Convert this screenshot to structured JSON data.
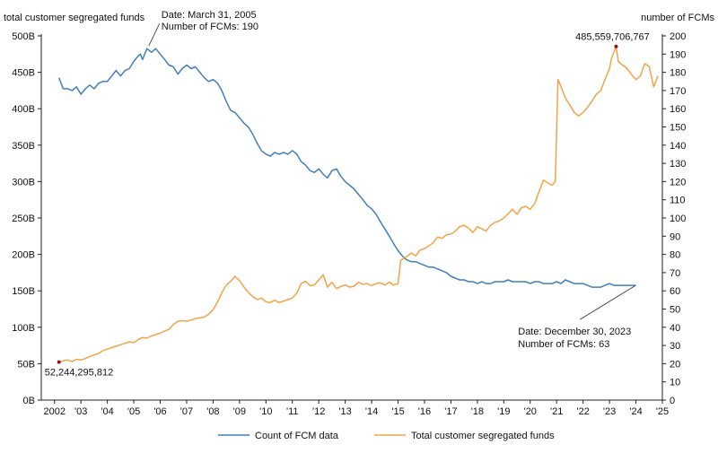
{
  "chart_data": {
    "type": "line",
    "left_axis_title": "total customer segregated funds",
    "right_axis_title": "number of FCMs",
    "x_ticks": [
      "2002",
      "'03",
      "'04",
      "'05",
      "'06",
      "'07",
      "'08",
      "'09",
      "'10",
      "'11",
      "'12",
      "'13",
      "'14",
      "'15",
      "'16",
      "'17",
      "'18",
      "'19",
      "'20",
      "'21",
      "'22",
      "'23",
      "'24",
      "'25"
    ],
    "xlim": [
      2001.5,
      2025
    ],
    "left_ticks": [
      "0B",
      "50B",
      "100B",
      "150B",
      "200B",
      "250B",
      "300B",
      "350B",
      "400B",
      "450B",
      "500B"
    ],
    "left_ylim": [
      0,
      500
    ],
    "right_ticks": [
      "0",
      "10",
      "20",
      "30",
      "40",
      "50",
      "60",
      "70",
      "80",
      "90",
      "100",
      "110",
      "120",
      "130",
      "140",
      "150",
      "160",
      "170",
      "180",
      "190",
      "200"
    ],
    "right_ylim": [
      0,
      200
    ],
    "series": [
      {
        "name": "Count of FCM data",
        "color": "#3f7fc1",
        "axis": "right",
        "points": [
          [
            2002.17,
            177
          ],
          [
            2002.33,
            171
          ],
          [
            2002.5,
            171
          ],
          [
            2002.67,
            170
          ],
          [
            2002.83,
            172
          ],
          [
            2003.0,
            168
          ],
          [
            2003.17,
            171
          ],
          [
            2003.33,
            173
          ],
          [
            2003.5,
            171
          ],
          [
            2003.67,
            174
          ],
          [
            2003.83,
            175
          ],
          [
            2004.0,
            175
          ],
          [
            2004.17,
            178
          ],
          [
            2004.33,
            181
          ],
          [
            2004.5,
            178
          ],
          [
            2004.67,
            181
          ],
          [
            2004.83,
            182
          ],
          [
            2005.0,
            186
          ],
          [
            2005.17,
            189
          ],
          [
            2005.25,
            190
          ],
          [
            2005.33,
            187
          ],
          [
            2005.5,
            193
          ],
          [
            2005.67,
            191
          ],
          [
            2005.83,
            193
          ],
          [
            2006.0,
            190
          ],
          [
            2006.17,
            187
          ],
          [
            2006.33,
            184
          ],
          [
            2006.5,
            183
          ],
          [
            2006.67,
            179
          ],
          [
            2006.83,
            182
          ],
          [
            2007.0,
            184
          ],
          [
            2007.17,
            182
          ],
          [
            2007.33,
            183
          ],
          [
            2007.5,
            180
          ],
          [
            2007.67,
            177
          ],
          [
            2007.83,
            175
          ],
          [
            2008.0,
            176
          ],
          [
            2008.17,
            174
          ],
          [
            2008.33,
            170
          ],
          [
            2008.5,
            164
          ],
          [
            2008.67,
            159
          ],
          [
            2008.83,
            158
          ],
          [
            2009.0,
            155
          ],
          [
            2009.17,
            152
          ],
          [
            2009.33,
            150
          ],
          [
            2009.5,
            146
          ],
          [
            2009.67,
            141
          ],
          [
            2009.83,
            137
          ],
          [
            2010.0,
            135
          ],
          [
            2010.17,
            134
          ],
          [
            2010.33,
            136
          ],
          [
            2010.5,
            135
          ],
          [
            2010.67,
            136
          ],
          [
            2010.83,
            135
          ],
          [
            2011.0,
            137
          ],
          [
            2011.17,
            135
          ],
          [
            2011.33,
            131
          ],
          [
            2011.5,
            129
          ],
          [
            2011.67,
            126
          ],
          [
            2011.83,
            125
          ],
          [
            2012.0,
            127
          ],
          [
            2012.17,
            124
          ],
          [
            2012.33,
            122
          ],
          [
            2012.5,
            126
          ],
          [
            2012.67,
            127
          ],
          [
            2012.83,
            123
          ],
          [
            2013.0,
            120
          ],
          [
            2013.17,
            118
          ],
          [
            2013.33,
            116
          ],
          [
            2013.5,
            113
          ],
          [
            2013.67,
            110
          ],
          [
            2013.83,
            107
          ],
          [
            2014.0,
            105
          ],
          [
            2014.17,
            102
          ],
          [
            2014.33,
            98
          ],
          [
            2014.5,
            94
          ],
          [
            2014.67,
            90
          ],
          [
            2014.83,
            86
          ],
          [
            2015.0,
            82
          ],
          [
            2015.17,
            79
          ],
          [
            2015.33,
            77
          ],
          [
            2015.5,
            76
          ],
          [
            2015.67,
            76
          ],
          [
            2015.83,
            75
          ],
          [
            2016.0,
            74
          ],
          [
            2016.17,
            73
          ],
          [
            2016.33,
            73
          ],
          [
            2016.5,
            72
          ],
          [
            2016.67,
            71
          ],
          [
            2016.83,
            70
          ],
          [
            2017.0,
            68
          ],
          [
            2017.17,
            67
          ],
          [
            2017.33,
            66
          ],
          [
            2017.5,
            66
          ],
          [
            2017.67,
            65
          ],
          [
            2017.83,
            65
          ],
          [
            2018.0,
            64
          ],
          [
            2018.17,
            65
          ],
          [
            2018.33,
            64
          ],
          [
            2018.5,
            64
          ],
          [
            2018.67,
            65
          ],
          [
            2018.83,
            65
          ],
          [
            2019.0,
            65
          ],
          [
            2019.17,
            66
          ],
          [
            2019.33,
            65
          ],
          [
            2019.5,
            65
          ],
          [
            2019.67,
            65
          ],
          [
            2019.83,
            65
          ],
          [
            2020.0,
            64
          ],
          [
            2020.17,
            65
          ],
          [
            2020.33,
            65
          ],
          [
            2020.5,
            64
          ],
          [
            2020.67,
            64
          ],
          [
            2020.83,
            64
          ],
          [
            2021.0,
            65
          ],
          [
            2021.17,
            64
          ],
          [
            2021.33,
            66
          ],
          [
            2021.5,
            65
          ],
          [
            2021.67,
            64
          ],
          [
            2021.83,
            64
          ],
          [
            2022.0,
            64
          ],
          [
            2022.17,
            63
          ],
          [
            2022.33,
            62
          ],
          [
            2022.5,
            62
          ],
          [
            2022.67,
            62
          ],
          [
            2022.83,
            63
          ],
          [
            2023.0,
            64
          ],
          [
            2023.17,
            63
          ],
          [
            2023.33,
            63
          ],
          [
            2023.5,
            63
          ],
          [
            2023.67,
            63
          ],
          [
            2023.83,
            63
          ],
          [
            2023.99,
            63
          ]
        ]
      },
      {
        "name": "Total customer segregated funds",
        "color": "#f2a348",
        "axis": "left",
        "points": [
          [
            2002.17,
            52.2
          ],
          [
            2002.33,
            54
          ],
          [
            2002.5,
            55
          ],
          [
            2002.67,
            53
          ],
          [
            2002.83,
            56
          ],
          [
            2003.0,
            55
          ],
          [
            2003.17,
            57
          ],
          [
            2003.33,
            60
          ],
          [
            2003.5,
            62
          ],
          [
            2003.67,
            64
          ],
          [
            2003.83,
            68
          ],
          [
            2004.0,
            70
          ],
          [
            2004.17,
            72
          ],
          [
            2004.33,
            74
          ],
          [
            2004.5,
            76
          ],
          [
            2004.67,
            78
          ],
          [
            2004.83,
            80
          ],
          [
            2005.0,
            79
          ],
          [
            2005.17,
            83
          ],
          [
            2005.33,
            86
          ],
          [
            2005.5,
            85
          ],
          [
            2005.67,
            88
          ],
          [
            2005.83,
            90
          ],
          [
            2006.0,
            92
          ],
          [
            2006.17,
            95
          ],
          [
            2006.33,
            97
          ],
          [
            2006.5,
            104
          ],
          [
            2006.67,
            108
          ],
          [
            2006.83,
            109
          ],
          [
            2007.0,
            108
          ],
          [
            2007.17,
            110
          ],
          [
            2007.33,
            112
          ],
          [
            2007.5,
            113
          ],
          [
            2007.67,
            114
          ],
          [
            2007.83,
            118
          ],
          [
            2008.0,
            124
          ],
          [
            2008.17,
            135
          ],
          [
            2008.33,
            147
          ],
          [
            2008.5,
            158
          ],
          [
            2008.67,
            163
          ],
          [
            2008.83,
            170
          ],
          [
            2009.0,
            164
          ],
          [
            2009.17,
            155
          ],
          [
            2009.33,
            148
          ],
          [
            2009.5,
            142
          ],
          [
            2009.67,
            138
          ],
          [
            2009.83,
            140
          ],
          [
            2010.0,
            135
          ],
          [
            2010.17,
            134
          ],
          [
            2010.33,
            137
          ],
          [
            2010.5,
            134
          ],
          [
            2010.67,
            136
          ],
          [
            2010.83,
            138
          ],
          [
            2011.0,
            140
          ],
          [
            2011.17,
            147
          ],
          [
            2011.33,
            160
          ],
          [
            2011.5,
            163
          ],
          [
            2011.67,
            157
          ],
          [
            2011.83,
            158
          ],
          [
            2012.0,
            165
          ],
          [
            2012.17,
            172
          ],
          [
            2012.33,
            155
          ],
          [
            2012.5,
            162
          ],
          [
            2012.67,
            153
          ],
          [
            2012.83,
            156
          ],
          [
            2013.0,
            158
          ],
          [
            2013.17,
            155
          ],
          [
            2013.33,
            156
          ],
          [
            2013.5,
            162
          ],
          [
            2013.67,
            159
          ],
          [
            2013.83,
            160
          ],
          [
            2014.0,
            157
          ],
          [
            2014.17,
            160
          ],
          [
            2014.33,
            161
          ],
          [
            2014.5,
            158
          ],
          [
            2014.67,
            162
          ],
          [
            2014.83,
            158
          ],
          [
            2015.0,
            160
          ],
          [
            2015.1,
            192
          ],
          [
            2015.33,
            197
          ],
          [
            2015.5,
            202
          ],
          [
            2015.67,
            198
          ],
          [
            2015.83,
            206
          ],
          [
            2016.0,
            208
          ],
          [
            2016.17,
            212
          ],
          [
            2016.33,
            216
          ],
          [
            2016.5,
            224
          ],
          [
            2016.67,
            222
          ],
          [
            2016.83,
            227
          ],
          [
            2017.0,
            228
          ],
          [
            2017.17,
            232
          ],
          [
            2017.33,
            238
          ],
          [
            2017.5,
            240
          ],
          [
            2017.67,
            236
          ],
          [
            2017.83,
            230
          ],
          [
            2018.0,
            238
          ],
          [
            2018.17,
            235
          ],
          [
            2018.33,
            232
          ],
          [
            2018.5,
            240
          ],
          [
            2018.67,
            244
          ],
          [
            2018.83,
            246
          ],
          [
            2019.0,
            250
          ],
          [
            2019.17,
            256
          ],
          [
            2019.33,
            262
          ],
          [
            2019.5,
            255
          ],
          [
            2019.67,
            264
          ],
          [
            2019.83,
            266
          ],
          [
            2020.0,
            262
          ],
          [
            2020.17,
            270
          ],
          [
            2020.33,
            286
          ],
          [
            2020.5,
            302
          ],
          [
            2020.67,
            298
          ],
          [
            2020.83,
            295
          ],
          [
            2020.95,
            300
          ],
          [
            2021.05,
            440
          ],
          [
            2021.17,
            430
          ],
          [
            2021.33,
            415
          ],
          [
            2021.5,
            405
          ],
          [
            2021.67,
            395
          ],
          [
            2021.83,
            390
          ],
          [
            2022.0,
            395
          ],
          [
            2022.17,
            402
          ],
          [
            2022.33,
            410
          ],
          [
            2022.5,
            420
          ],
          [
            2022.67,
            425
          ],
          [
            2022.83,
            440
          ],
          [
            2023.0,
            455
          ],
          [
            2023.08,
            470
          ],
          [
            2023.17,
            478
          ],
          [
            2023.25,
            485.6
          ],
          [
            2023.33,
            465
          ],
          [
            2023.5,
            460
          ],
          [
            2023.67,
            455
          ],
          [
            2023.83,
            447
          ],
          [
            2024.0,
            440
          ],
          [
            2024.17,
            445
          ],
          [
            2024.33,
            462
          ],
          [
            2024.5,
            458
          ],
          [
            2024.67,
            430
          ],
          [
            2024.83,
            445
          ]
        ]
      }
    ],
    "annotations": {
      "max_fcm": {
        "line1": "Date: March 31, 2005",
        "line2": "Number of FCMs: 190"
      },
      "last_fcm": {
        "line1": "Date: December 30, 2023",
        "line2": "Number of FCMs: 63"
      },
      "min_funds_label": "52,244,295,812",
      "max_funds_label": "485,559,706,767"
    },
    "legend": {
      "placement": "bottom-center"
    },
    "grid": false
  }
}
